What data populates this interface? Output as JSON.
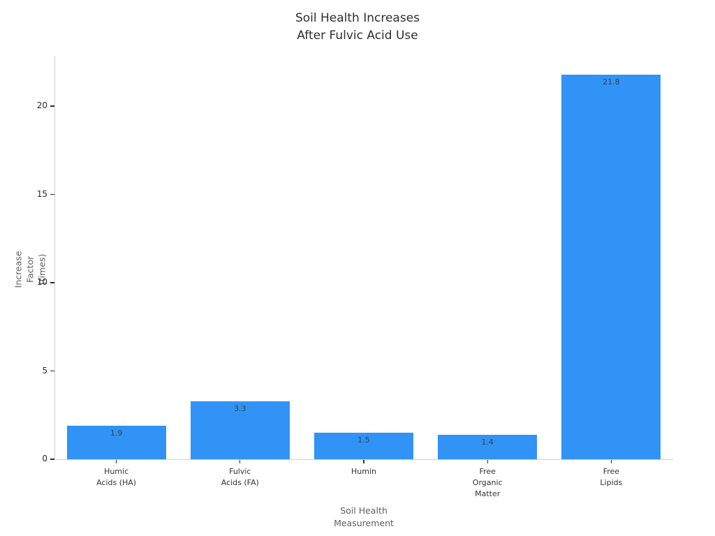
{
  "chart_data": {
    "type": "bar",
    "title": "Soil Health Increases\nAfter Fulvic Acid Use",
    "xlabel": "Soil Health\nMeasurement",
    "ylabel": "Increase Factor\n(times)",
    "categories": [
      "Humic\nAcids (HA)",
      "Fulvic\nAcids (FA)",
      "Humin",
      "Free\nOrganic\nMatter",
      "Free\nLipids"
    ],
    "values": [
      1.9,
      3.3,
      1.5,
      1.4,
      21.8
    ],
    "value_labels": [
      "1.9",
      "3.3",
      "1.5",
      "1.4",
      "21.8"
    ],
    "yticks": [
      0,
      5,
      10,
      15,
      20
    ],
    "ylim": [
      0,
      22.85
    ],
    "bar_color": "#3093f5",
    "grid": "off",
    "legend": "none"
  }
}
